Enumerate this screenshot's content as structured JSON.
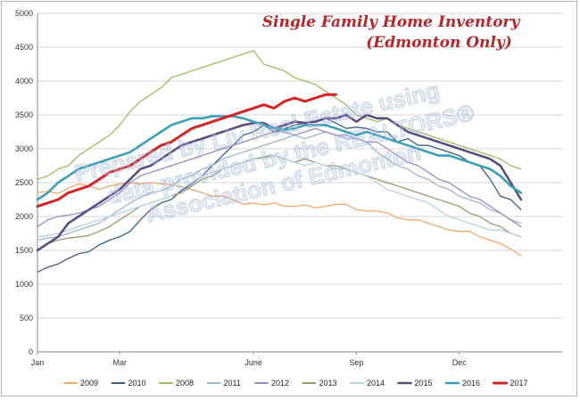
{
  "chart_data": {
    "type": "line",
    "title": "Single Family Home Inventory",
    "subtitle": "(Edmonton Only)",
    "watermark": [
      "Prepared by Liv Real Estate using",
      "data provided by the REALTORS®",
      "Association of Edmonton"
    ],
    "x_labels": [
      "Jan",
      "Mar",
      "June",
      "Sep",
      "Dec"
    ],
    "x_label_weeks": [
      1,
      9,
      22,
      32,
      42
    ],
    "ylim": [
      0,
      5000
    ],
    "yticks": [
      0,
      500,
      1000,
      1500,
      2000,
      2500,
      3000,
      3500,
      4000,
      4500,
      5000
    ],
    "grid": true,
    "legend_position": "bottom",
    "series": [
      {
        "name": "2009",
        "color": "#f2a869",
        "width": 1.3,
        "values": [
          2350,
          2370,
          2340,
          2420,
          2480,
          2450,
          2400,
          2450,
          2480,
          2500,
          2480,
          2500,
          2480,
          2470,
          2440,
          2400,
          2350,
          2300,
          2300,
          2250,
          2180,
          2200,
          2170,
          2200,
          2150,
          2150,
          2170,
          2130,
          2150,
          2180,
          2180,
          2100,
          2080,
          2080,
          2050,
          1980,
          1950,
          1950,
          1900,
          1850,
          1800,
          1780,
          1780,
          1700,
          1650,
          1600,
          1520,
          1420
        ]
      },
      {
        "name": "2010",
        "color": "#3c5f86",
        "width": 1.3,
        "values": [
          1180,
          1250,
          1300,
          1380,
          1450,
          1480,
          1580,
          1650,
          1700,
          1780,
          1950,
          2100,
          2200,
          2250,
          2380,
          2480,
          2600,
          2750,
          2900,
          3050,
          3200,
          3250,
          3350,
          3250,
          3300,
          3350,
          3380,
          3400,
          3450,
          3380,
          3300,
          3320,
          3300,
          3250,
          3250,
          3100,
          3150,
          3050,
          3050,
          3000,
          2950,
          2900,
          2800,
          2750,
          2550,
          2300,
          2250,
          2100
        ]
      },
      {
        "name": "2008",
        "color": "#9ebd5e",
        "width": 1.3,
        "values": [
          2550,
          2600,
          2700,
          2750,
          2900,
          3000,
          3100,
          3200,
          3350,
          3550,
          3700,
          3800,
          3900,
          4050,
          4100,
          4150,
          4200,
          4250,
          4300,
          4350,
          4400,
          4450,
          4250,
          4200,
          4150,
          4050,
          4000,
          3950,
          3850,
          3750,
          3650,
          3500,
          3450,
          3400,
          3450,
          3350,
          3300,
          3250,
          3200,
          3150,
          3100,
          3050,
          3000,
          2950,
          2900,
          2850,
          2750,
          2700
        ]
      },
      {
        "name": "2011",
        "color": "#9bb7d2",
        "width": 1.3,
        "values": [
          1650,
          1680,
          1700,
          1750,
          1800,
          1850,
          1900,
          2000,
          2100,
          2200,
          2280,
          2350,
          2380,
          2450,
          2550,
          2600,
          2700,
          2750,
          2850,
          2900,
          2950,
          3000,
          3050,
          3100,
          3150,
          3200,
          3150,
          3200,
          3250,
          3200,
          3150,
          3150,
          3100,
          2950,
          2850,
          2750,
          2700,
          2600,
          2550,
          2450,
          2400,
          2300,
          2250,
          2200,
          2100,
          2050,
          1950,
          1900
        ]
      },
      {
        "name": "2012",
        "color": "#9d8bbf",
        "width": 1.3,
        "values": [
          1850,
          1950,
          2000,
          2020,
          2050,
          2100,
          2150,
          2250,
          2350,
          2500,
          2600,
          2650,
          2700,
          2750,
          2800,
          2850,
          2900,
          2950,
          3000,
          3050,
          3100,
          3150,
          3200,
          3250,
          3250,
          3200,
          3250,
          3300,
          3250,
          3200,
          3200,
          3150,
          3100,
          3100,
          3000,
          2900,
          2800,
          2750,
          2650,
          2550,
          2500,
          2400,
          2300,
          2250,
          2150,
          2050,
          1950,
          1850
        ]
      },
      {
        "name": "2013",
        "color": "#9b9a6c",
        "width": 1.3,
        "values": [
          1500,
          1600,
          1650,
          1680,
          1700,
          1720,
          1780,
          1850,
          1950,
          2050,
          2150,
          2200,
          2250,
          2300,
          2350,
          2450,
          2550,
          2600,
          2700,
          2750,
          2800,
          2850,
          2880,
          2900,
          2850,
          2800,
          2850,
          2800,
          2750,
          2750,
          2700,
          2650,
          2600,
          2550,
          2500,
          2450,
          2400,
          2350,
          2300,
          2250,
          2200,
          2150,
          2050,
          2000,
          1900,
          1850,
          1750,
          1700
        ]
      },
      {
        "name": "2014",
        "color": "#b3d4e4",
        "width": 1.3,
        "values": [
          1700,
          1720,
          1750,
          1800,
          1850,
          1900,
          1950,
          2000,
          2050,
          2100,
          2150,
          2200,
          2250,
          2300,
          2400,
          2500,
          2600,
          2650,
          2700,
          2750,
          2800,
          2850,
          2850,
          2900,
          2850,
          2800,
          2750,
          2800,
          2750,
          2700,
          2700,
          2650,
          2600,
          2500,
          2400,
          2350,
          2300,
          2250,
          2200,
          2100,
          2000,
          1950,
          1900,
          1850,
          1800,
          1800,
          1750,
          1700
        ]
      },
      {
        "name": "2015",
        "color": "#5b4c82",
        "width": 2.6,
        "values": [
          1500,
          1600,
          1700,
          1900,
          2000,
          2100,
          2200,
          2300,
          2400,
          2550,
          2700,
          2750,
          2850,
          2950,
          3050,
          3100,
          3150,
          3200,
          3250,
          3300,
          3350,
          3380,
          3380,
          3300,
          3350,
          3400,
          3380,
          3400,
          3450,
          3450,
          3500,
          3400,
          3500,
          3450,
          3450,
          3350,
          3250,
          3200,
          3150,
          3100,
          3050,
          3000,
          2950,
          2900,
          2850,
          2750,
          2500,
          2250
        ]
      },
      {
        "name": "2016",
        "color": "#3a9fb7",
        "width": 2.6,
        "values": [
          2250,
          2350,
          2500,
          2600,
          2700,
          2750,
          2800,
          2850,
          2900,
          2950,
          3050,
          3150,
          3250,
          3350,
          3400,
          3450,
          3450,
          3480,
          3480,
          3480,
          3450,
          3400,
          3350,
          3300,
          3280,
          3300,
          3350,
          3350,
          3350,
          3300,
          3250,
          3200,
          3250,
          3200,
          3150,
          3100,
          3050,
          3000,
          2950,
          2900,
          2900,
          2850,
          2800,
          2750,
          2700,
          2600,
          2450,
          2350
        ]
      },
      {
        "name": "2017",
        "color": "#d42425",
        "width": 3.0,
        "values": [
          2150,
          2200,
          2250,
          2350,
          2400,
          2450,
          2550,
          2650,
          2700,
          2750,
          2850,
          2950,
          3050,
          3100,
          3200,
          3300,
          3350,
          3400,
          3450,
          3500,
          3550,
          3600,
          3650,
          3600,
          3700,
          3750,
          3700,
          3750,
          3800,
          3800
        ]
      }
    ]
  }
}
